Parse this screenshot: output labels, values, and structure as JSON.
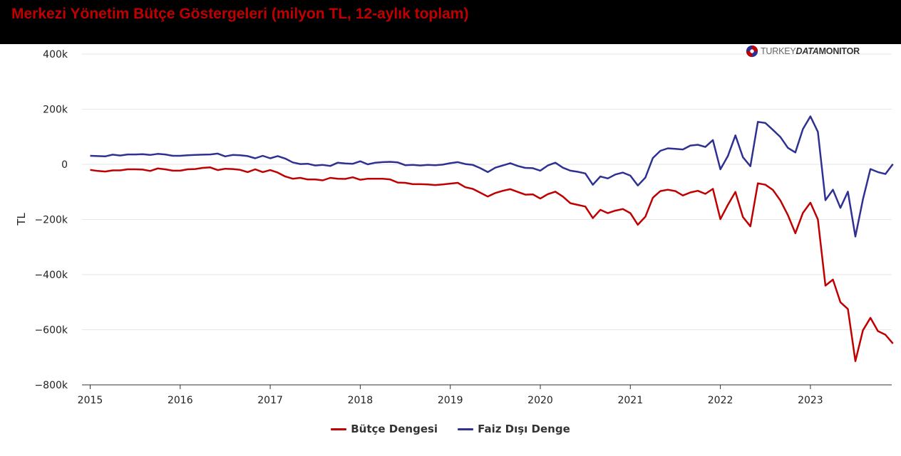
{
  "header": {
    "title": "Merkezi Yönetim Bütçe Göstergeleri (milyon TL, 12-aylık toplam)"
  },
  "logo": {
    "text_light": "TURKEY",
    "text_mid": "DATA",
    "text_bold": "MONITOR"
  },
  "colors": {
    "header_bg": "#000000",
    "title": "#c00000",
    "butce": "#c00000",
    "faiz": "#2e3192"
  },
  "chart_data": {
    "type": "line",
    "title": "Merkezi Yönetim Bütçe Göstergeleri (milyon TL, 12-aylık toplam)",
    "xlabel": "",
    "ylabel": "TL",
    "xlim": [
      2015,
      2023.917
    ],
    "ylim": [
      -800000,
      400000
    ],
    "yticks": [
      400000,
      200000,
      0,
      -200000,
      -400000,
      -600000,
      -800000
    ],
    "ytick_labels": [
      "400k",
      "200k",
      "0",
      "−200k",
      "−400k",
      "−600k",
      "−800k"
    ],
    "xtick_labels": [
      "2015",
      "2016",
      "2017",
      "2018",
      "2019",
      "2020",
      "2021",
      "2022",
      "2023"
    ],
    "grid": "horizontal",
    "legend": "bottom-center",
    "x_start": "2015-01",
    "x_step": "month",
    "series": [
      {
        "name": "Bütçe Dengesi",
        "color": "#c00000",
        "values": [
          -20000,
          -24000,
          -26000,
          -22000,
          -22000,
          -18000,
          -18000,
          -19000,
          -24000,
          -15000,
          -18000,
          -23000,
          -23000,
          -18000,
          -17000,
          -13000,
          -11000,
          -21000,
          -16000,
          -17000,
          -20000,
          -28000,
          -18000,
          -28000,
          -21000,
          -30000,
          -44000,
          -52000,
          -49000,
          -55000,
          -55000,
          -58000,
          -49000,
          -52000,
          -53000,
          -47000,
          -56000,
          -52000,
          -52000,
          -52000,
          -55000,
          -66000,
          -67000,
          -72000,
          -72000,
          -73000,
          -75000,
          -73000,
          -70000,
          -67000,
          -83000,
          -89000,
          -103000,
          -117000,
          -104000,
          -96000,
          -90000,
          -100000,
          -110000,
          -109000,
          -124000,
          -108000,
          -99000,
          -117000,
          -141000,
          -147000,
          -153000,
          -195000,
          -165000,
          -177000,
          -168000,
          -162000,
          -177000,
          -219000,
          -190000,
          -121000,
          -97000,
          -92000,
          -97000,
          -113000,
          -102000,
          -96000,
          -107000,
          -89000,
          -199000,
          -147000,
          -100000,
          -191000,
          -225000,
          -69000,
          -74000,
          -93000,
          -131000,
          -184000,
          -250000,
          -176000,
          -139000,
          -200000,
          -440000,
          -418000,
          -500000,
          -525000,
          -714000,
          -602000,
          -557000,
          -605000,
          -618000,
          -650000
        ]
      },
      {
        "name": "Faiz Dışı Denge",
        "color": "#2e3192",
        "values": [
          31000,
          30000,
          29000,
          35000,
          32000,
          36000,
          36000,
          37000,
          34000,
          38000,
          36000,
          31000,
          31000,
          33000,
          34000,
          35000,
          36000,
          39000,
          29000,
          34000,
          33000,
          30000,
          22000,
          31000,
          22000,
          30000,
          21000,
          7000,
          1000,
          2000,
          -4000,
          -2000,
          -6000,
          6000,
          3000,
          2000,
          11000,
          0,
          6000,
          8000,
          9000,
          7000,
          -3000,
          -2000,
          -4000,
          -2000,
          -3000,
          -1000,
          4000,
          8000,
          1000,
          -2000,
          -14000,
          -28000,
          -12000,
          -4000,
          4000,
          -6000,
          -13000,
          -14000,
          -23000,
          -4000,
          6000,
          -12000,
          -23000,
          -27000,
          -33000,
          -74000,
          -44000,
          -51000,
          -37000,
          -30000,
          -41000,
          -77000,
          -48000,
          23000,
          49000,
          58000,
          56000,
          54000,
          68000,
          71000,
          63000,
          88000,
          -18000,
          30000,
          105000,
          26000,
          -7000,
          154000,
          150000,
          125000,
          99000,
          60000,
          43000,
          128000,
          174000,
          118000,
          -130000,
          -92000,
          -158000,
          -99000,
          -262000,
          -127000,
          -17000,
          -28000,
          -35000,
          1000
        ]
      }
    ]
  },
  "legend": {
    "items": [
      {
        "label": "Bütçe Dengesi",
        "color": "#c00000"
      },
      {
        "label": "Faiz Dışı Denge",
        "color": "#2e3192"
      }
    ]
  }
}
